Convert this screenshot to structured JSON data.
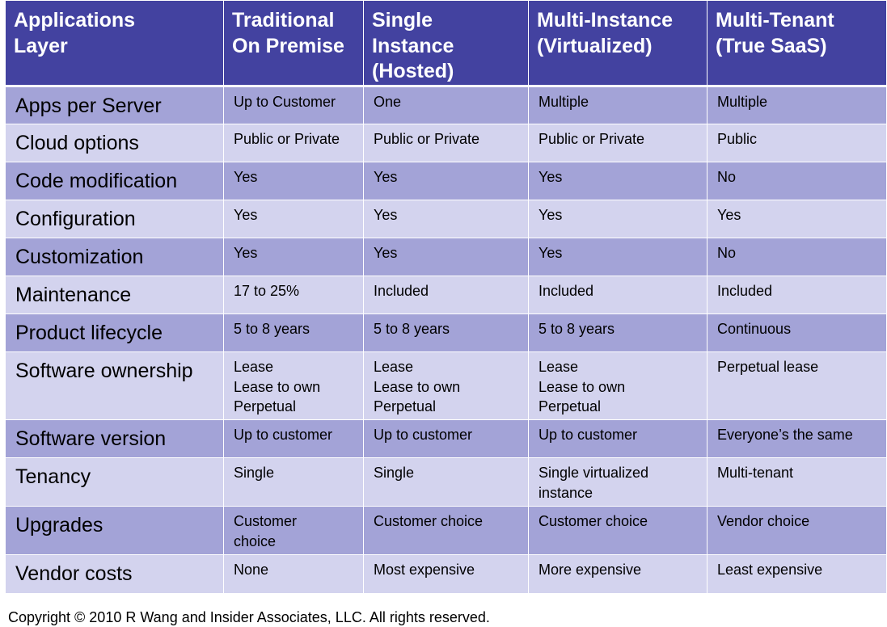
{
  "table": {
    "headers": [
      "Applications\n Layer",
      "Traditional\nOn Premise",
      "Single\nInstance\n(Hosted)",
      "Multi-Instance\n(Virtualized)",
      "Multi-Tenant\n(True SaaS)"
    ],
    "rows": [
      [
        "Apps per Server",
        "Up to Customer",
        "One",
        "Multiple",
        "Multiple"
      ],
      [
        "Cloud options",
        "Public or Private",
        "Public or Private",
        "Public or Private",
        "Public"
      ],
      [
        "Code modification",
        "Yes",
        "Yes",
        "Yes",
        "No"
      ],
      [
        "Configuration",
        "Yes",
        "Yes",
        "Yes",
        "Yes"
      ],
      [
        "Customization",
        "Yes",
        "Yes",
        "Yes",
        "No"
      ],
      [
        "Maintenance",
        "17 to 25%",
        "Included",
        "Included",
        "Included"
      ],
      [
        "Product lifecycle",
        "5 to 8 years",
        "5 to 8 years",
        "5 to 8 years",
        "Continuous"
      ],
      [
        "Software ownership",
        "Lease\nLease to own\nPerpetual",
        "Lease\nLease to own\nPerpetual",
        "Lease\nLease to own\nPerpetual",
        "Perpetual lease"
      ],
      [
        "Software version",
        "Up to customer",
        "Up to customer",
        "Up to customer",
        "Everyone’s the same"
      ],
      [
        "Tenancy",
        "Single",
        "Single",
        "Single virtualized\ninstance",
        "Multi-tenant"
      ],
      [
        "Upgrades",
        "Customer\nchoice",
        "Customer choice",
        "Customer choice",
        "Vendor choice"
      ],
      [
        "Vendor costs",
        "None",
        "Most expensive",
        "More expensive",
        "Least expensive"
      ]
    ]
  },
  "footer": {
    "copyright": "Copyright © 2010 R Wang and Insider Associates, LLC. All rights reserved."
  },
  "colors": {
    "header": "#4342a0",
    "row_dark": "#a3a3d7",
    "row_light": "#d3d3ee"
  }
}
